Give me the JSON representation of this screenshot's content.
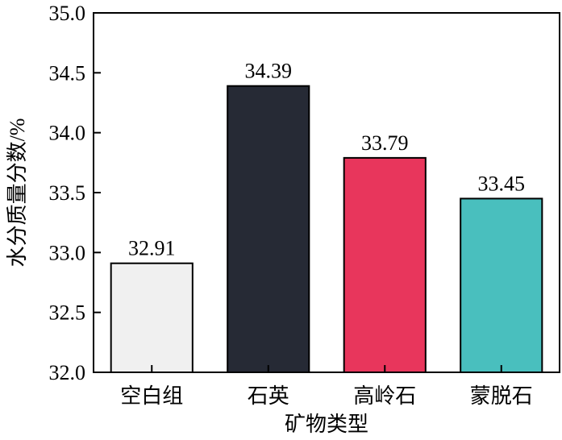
{
  "chart_data": {
    "type": "bar",
    "categories": [
      "空白组",
      "石英",
      "高岭石",
      "蒙脱石"
    ],
    "values": [
      32.91,
      34.39,
      33.79,
      33.45
    ],
    "value_labels": [
      "32.91",
      "34.39",
      "33.79",
      "33.45"
    ],
    "title": "",
    "xlabel": "矿物类型",
    "ylabel": "水分质量分数/%",
    "ylim": [
      32.0,
      35.0
    ],
    "yticks": [
      "32.0",
      "32.5",
      "33.0",
      "33.5",
      "34.0",
      "34.5",
      "35.0"
    ],
    "bar_colors": [
      "#f0f0f0",
      "#262a35",
      "#e8365c",
      "#49bfbe"
    ],
    "grid": false,
    "legend": "none"
  }
}
